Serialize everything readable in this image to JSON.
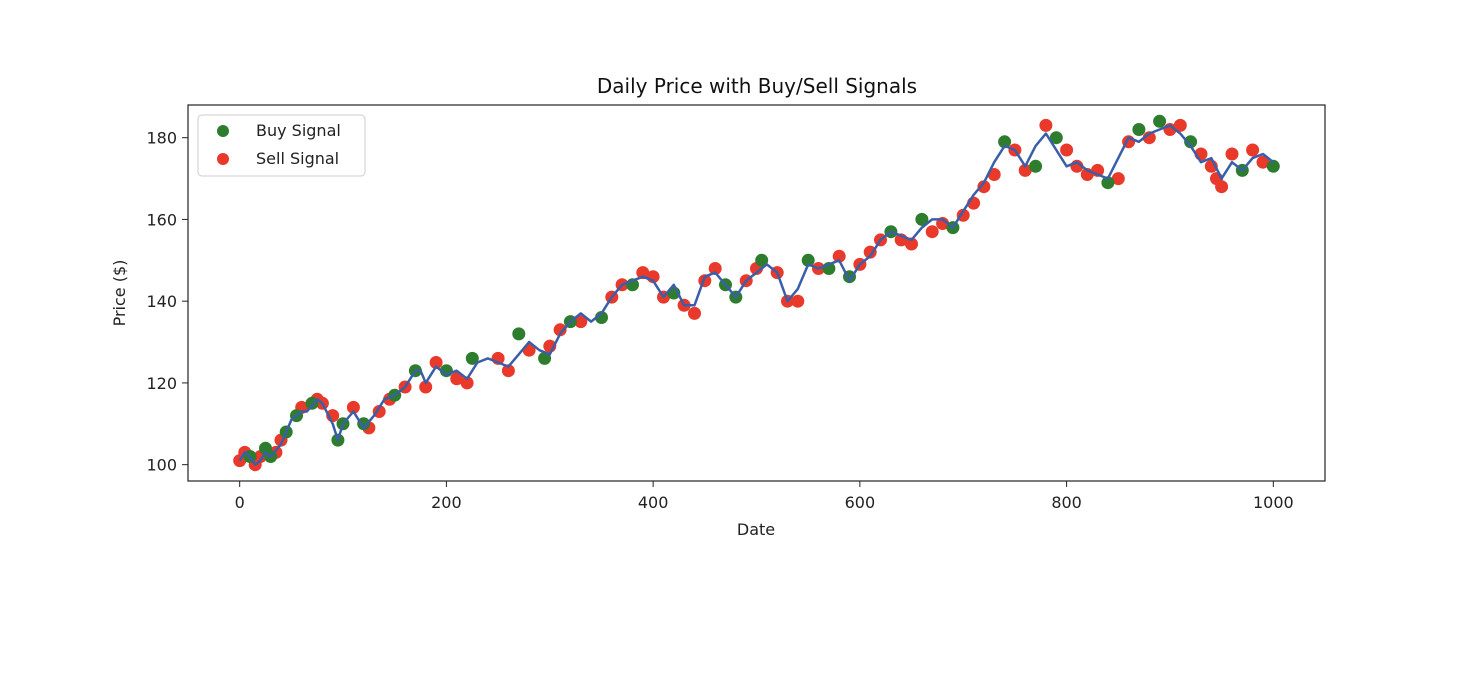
{
  "chart_data": {
    "type": "line",
    "title": "Daily Price with Buy/Sell Signals",
    "xlabel": "Date",
    "ylabel": "Price ($)",
    "xlim": [
      -50,
      1050
    ],
    "ylim": [
      96,
      188
    ],
    "xticks": [
      0,
      200,
      400,
      600,
      800,
      1000
    ],
    "yticks": [
      100,
      120,
      140,
      160,
      180
    ],
    "grid": false,
    "legend_position": "top-left",
    "legend": [
      "Buy Signal",
      "Sell Signal"
    ],
    "colors": {
      "price_line": "#3a5fa8",
      "buy": "#2e7d2e",
      "sell": "#e8392b"
    },
    "series": [
      {
        "kind": "line",
        "x": [
          0,
          5,
          10,
          15,
          20,
          25,
          30,
          40,
          50,
          60,
          65,
          75,
          80,
          90,
          95,
          100,
          110,
          120,
          130,
          140,
          150,
          160,
          170,
          175,
          180,
          190,
          200,
          210,
          220,
          230,
          240,
          250,
          260,
          270,
          280,
          290,
          300,
          310,
          320,
          330,
          340,
          350,
          360,
          370,
          380,
          390,
          400,
          410,
          420,
          430,
          440,
          450,
          460,
          470,
          480,
          490,
          500,
          510,
          520,
          530,
          540,
          550,
          560,
          570,
          580,
          590,
          600,
          610,
          620,
          630,
          640,
          650,
          660,
          670,
          680,
          690,
          700,
          710,
          720,
          730,
          740,
          750,
          760,
          770,
          780,
          790,
          800,
          810,
          820,
          830,
          840,
          850,
          860,
          870,
          880,
          890,
          900,
          910,
          920,
          930,
          940,
          950,
          960,
          970,
          980,
          990,
          1000
        ],
        "values": [
          101,
          103,
          102,
          100,
          101,
          103,
          102,
          105,
          111,
          113,
          113,
          116,
          115,
          110,
          106,
          110,
          113,
          109,
          112,
          116,
          117,
          119,
          123,
          123,
          120,
          124,
          122,
          123,
          121,
          125,
          126,
          125,
          124,
          127,
          130,
          128,
          127,
          132,
          135,
          137,
          135,
          137,
          141,
          144,
          145,
          146,
          145,
          141,
          144,
          139,
          139,
          146,
          147,
          144,
          141,
          145,
          147,
          149,
          147,
          140,
          143,
          149,
          148,
          149,
          150,
          145,
          149,
          151,
          155,
          157,
          156,
          155,
          158,
          160,
          160,
          158,
          162,
          166,
          169,
          174,
          178,
          177,
          173,
          178,
          181,
          177,
          173,
          174,
          172,
          171,
          170,
          175,
          180,
          179,
          181,
          182,
          183,
          181,
          178,
          174,
          175,
          170,
          174,
          172,
          175,
          176,
          174
        ]
      },
      {
        "name": "Buy Signal",
        "kind": "scatter",
        "x": [
          10,
          25,
          30,
          45,
          55,
          70,
          95,
          100,
          120,
          150,
          170,
          200,
          225,
          270,
          295,
          320,
          350,
          380,
          420,
          470,
          480,
          505,
          550,
          570,
          590,
          630,
          660,
          690,
          740,
          770,
          790,
          840,
          870,
          890,
          920,
          970,
          1000
        ],
        "values": [
          102,
          104,
          102,
          108,
          112,
          115,
          106,
          110,
          110,
          117,
          123,
          123,
          126,
          132,
          126,
          135,
          136,
          144,
          142,
          144,
          141,
          150,
          150,
          148,
          146,
          157,
          160,
          158,
          179,
          173,
          180,
          169,
          182,
          184,
          179,
          172,
          173
        ]
      },
      {
        "name": "Sell Signal",
        "kind": "scatter",
        "x": [
          0,
          5,
          15,
          20,
          35,
          40,
          60,
          75,
          80,
          90,
          110,
          125,
          135,
          145,
          160,
          180,
          190,
          210,
          220,
          250,
          260,
          280,
          300,
          310,
          330,
          360,
          370,
          390,
          400,
          410,
          430,
          440,
          450,
          460,
          490,
          500,
          520,
          530,
          540,
          560,
          580,
          600,
          610,
          620,
          640,
          650,
          670,
          680,
          700,
          710,
          720,
          730,
          750,
          760,
          780,
          800,
          810,
          820,
          830,
          850,
          860,
          880,
          900,
          910,
          930,
          940,
          945,
          950,
          960,
          980,
          990
        ],
        "values": [
          101,
          103,
          100,
          102,
          103,
          106,
          114,
          116,
          115,
          112,
          114,
          109,
          113,
          116,
          119,
          119,
          125,
          121,
          120,
          126,
          123,
          128,
          129,
          133,
          135,
          141,
          144,
          147,
          146,
          141,
          139,
          137,
          145,
          148,
          145,
          148,
          147,
          140,
          140,
          148,
          151,
          149,
          152,
          155,
          155,
          154,
          157,
          159,
          161,
          164,
          168,
          171,
          177,
          172,
          183,
          177,
          173,
          171,
          172,
          170,
          179,
          180,
          182,
          183,
          176,
          173,
          170,
          168,
          176,
          177,
          174
        ]
      }
    ]
  }
}
